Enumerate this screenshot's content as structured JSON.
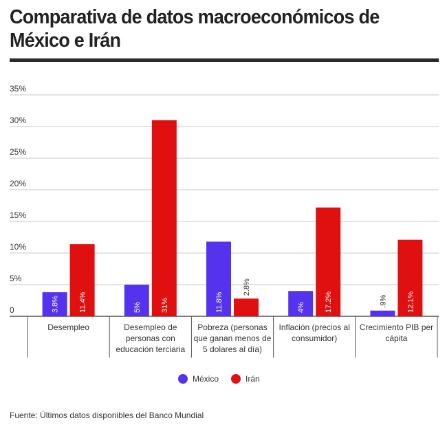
{
  "title": "Comparativa de datos macroeconómicos de México e Irán",
  "source": "Fuente: Últimos datos disponibles del Banco Mundial",
  "colors": {
    "mexico": "#5533ee",
    "iran": "#e01010",
    "grid": "#c8c8c8",
    "axis": "#555555"
  },
  "chart_data": {
    "type": "bar",
    "title": "Comparativa de datos macroeconómicos de México e Irán",
    "categories": [
      [
        "Desempleo"
      ],
      [
        "Desempleo de",
        "personas con",
        "educación terciaria"
      ],
      [
        "Pobreza (personas",
        "que ganan menos de",
        "5 dolares al día)"
      ],
      [
        "Inflación (precios al",
        "consumidor)"
      ],
      [
        "Crecimiento PIB per",
        "cápita"
      ]
    ],
    "yticks": [
      "0",
      "5%",
      "10%",
      "15%",
      "20%",
      "25%",
      "30%",
      "35%"
    ],
    "ylim": [
      0,
      35
    ],
    "grid": true,
    "legend_position": "bottom-center",
    "series": [
      {
        "name": "México",
        "values": [
          3.8,
          5,
          11.8,
          4,
          0.9
        ],
        "labels": [
          "3.8%",
          "5%",
          "11.8%",
          "4%",
          ".9%"
        ]
      },
      {
        "name": "Irán",
        "values": [
          11.4,
          31,
          2.8,
          17.2,
          12.1
        ],
        "labels": [
          "11.4%",
          "31%",
          "2.8%",
          "17.2%",
          "12.1%"
        ]
      }
    ]
  }
}
